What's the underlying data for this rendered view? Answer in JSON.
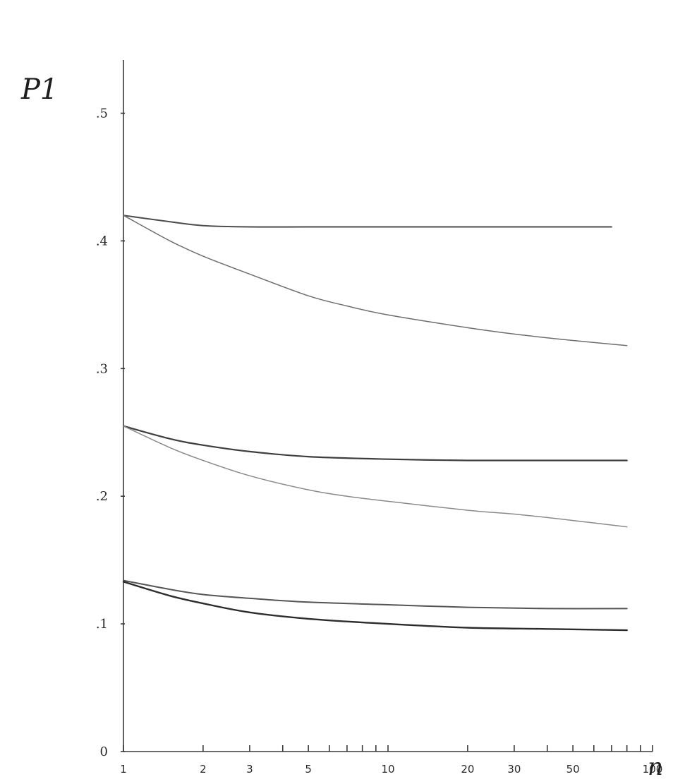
{
  "chart_data": {
    "type": "line",
    "xscale": "log",
    "xlim": [
      1,
      100
    ],
    "ylim": [
      0,
      0.55
    ],
    "xlabel": "n",
    "ylabel": "P1",
    "grid": false,
    "legend": "none",
    "x_ticks": [
      1,
      2,
      3,
      4,
      5,
      6,
      7,
      8,
      9,
      10,
      20,
      30,
      40,
      50,
      60,
      70,
      80,
      90,
      100
    ],
    "x_tick_labels": [
      {
        "value": 1,
        "label": "1"
      },
      {
        "value": 2,
        "label": "2"
      },
      {
        "value": 3,
        "label": "3"
      },
      {
        "value": 5,
        "label": "5"
      },
      {
        "value": 10,
        "label": "10"
      },
      {
        "value": 20,
        "label": "20"
      },
      {
        "value": 30,
        "label": "30"
      },
      {
        "value": 50,
        "label": "50"
      },
      {
        "value": 100,
        "label": "100"
      }
    ],
    "y_tick_labels": [
      {
        "value": 0,
        "label": "0"
      },
      {
        "value": 0.1,
        "label": ".1"
      },
      {
        "value": 0.2,
        "label": ".2"
      },
      {
        "value": 0.3,
        "label": ".3"
      },
      {
        "value": 0.4,
        "label": ".4"
      },
      {
        "value": 0.5,
        "label": ".5"
      }
    ],
    "series": [
      {
        "color": "#4d4d4d",
        "width": 2.0,
        "x": [
          1,
          1.5,
          2,
          3,
          5,
          10,
          20,
          40,
          70
        ],
        "y": [
          0.42,
          0.415,
          0.412,
          0.411,
          0.411,
          0.411,
          0.411,
          0.411,
          0.411
        ]
      },
      {
        "color": "#6e6e6e",
        "width": 1.5,
        "x": [
          1,
          1.5,
          2,
          3,
          5,
          7,
          10,
          20,
          30,
          50,
          80
        ],
        "y": [
          0.42,
          0.4,
          0.388,
          0.374,
          0.357,
          0.349,
          0.342,
          0.332,
          0.327,
          0.322,
          0.318
        ]
      },
      {
        "color": "#3e3e3e",
        "width": 2.2,
        "x": [
          1,
          1.5,
          2,
          3,
          5,
          10,
          20,
          40,
          80
        ],
        "y": [
          0.255,
          0.245,
          0.24,
          0.235,
          0.231,
          0.229,
          0.228,
          0.228,
          0.228
        ]
      },
      {
        "color": "#8a8a8a",
        "width": 1.5,
        "x": [
          1,
          1.5,
          2,
          3,
          5,
          7,
          10,
          20,
          30,
          50,
          80
        ],
        "y": [
          0.255,
          0.238,
          0.228,
          0.216,
          0.205,
          0.2,
          0.196,
          0.189,
          0.186,
          0.181,
          0.176
        ]
      },
      {
        "color": "#555555",
        "width": 2.0,
        "x": [
          1,
          1.5,
          2,
          3,
          5,
          10,
          20,
          40,
          80
        ],
        "y": [
          0.134,
          0.127,
          0.123,
          0.12,
          0.117,
          0.115,
          0.113,
          0.112,
          0.112
        ]
      },
      {
        "color": "#2c2c2c",
        "width": 2.4,
        "x": [
          1,
          1.5,
          2,
          3,
          5,
          10,
          20,
          40,
          80
        ],
        "y": [
          0.133,
          0.122,
          0.116,
          0.109,
          0.104,
          0.1,
          0.097,
          0.096,
          0.095
        ]
      }
    ]
  }
}
